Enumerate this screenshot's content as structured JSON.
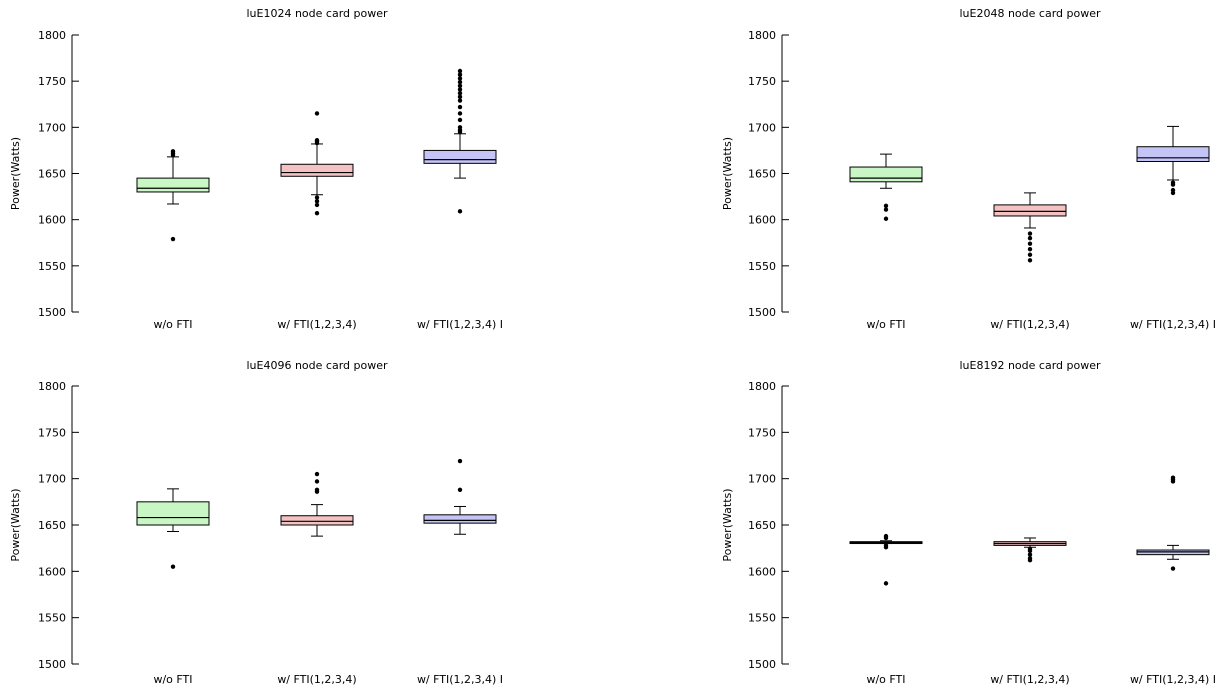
{
  "colors": {
    "series": [
      "#c8f7c5",
      "#f4c2c2",
      "#c4c4f7"
    ],
    "axis": "#000000"
  },
  "chart_data": [
    {
      "type": "boxplot",
      "title": "luE1024 node card power",
      "ylabel": "Power(Watts)",
      "ylim": [
        1500,
        1800
      ],
      "yticks": [
        1500,
        1550,
        1600,
        1650,
        1700,
        1750,
        1800
      ],
      "categories": [
        "w/o FTI",
        "w/ FTI(1,2,3,4)",
        "w/ FTI(1,2,3,4) I"
      ],
      "boxes": [
        {
          "whisker_low": 1617,
          "q1": 1630,
          "median": 1634,
          "q3": 1645,
          "whisker_high": 1668,
          "outliers": [
            1579,
            1670,
            1672,
            1674
          ]
        },
        {
          "whisker_low": 1627,
          "q1": 1647,
          "median": 1651,
          "q3": 1660,
          "whisker_high": 1682,
          "outliers": [
            1607,
            1616,
            1620,
            1624,
            1683,
            1685,
            1686,
            1715
          ]
        },
        {
          "whisker_low": 1645,
          "q1": 1661,
          "median": 1665,
          "q3": 1675,
          "whisker_high": 1693,
          "outliers": [
            1609,
            1695,
            1697,
            1700,
            1708,
            1715,
            1722,
            1729,
            1733,
            1737,
            1741,
            1745,
            1749,
            1753,
            1757,
            1761
          ]
        }
      ]
    },
    {
      "type": "boxplot",
      "title": "luE2048 node card power",
      "ylabel": "Power(Watts)",
      "ylim": [
        1500,
        1800
      ],
      "yticks": [
        1500,
        1550,
        1600,
        1650,
        1700,
        1750,
        1800
      ],
      "categories": [
        "w/o FTI",
        "w/ FTI(1,2,3,4)",
        "w/ FTI(1,2,3,4) I"
      ],
      "boxes": [
        {
          "whisker_low": 1634,
          "q1": 1641,
          "median": 1645,
          "q3": 1657,
          "whisker_high": 1671,
          "outliers": [
            1601,
            1611,
            1615
          ]
        },
        {
          "whisker_low": 1591,
          "q1": 1604,
          "median": 1609,
          "q3": 1616,
          "whisker_high": 1629,
          "outliers": [
            1556,
            1562,
            1568,
            1574,
            1580,
            1585
          ]
        },
        {
          "whisker_low": 1643,
          "q1": 1663,
          "median": 1667,
          "q3": 1679,
          "whisker_high": 1701,
          "outliers": [
            1629,
            1632,
            1638,
            1640
          ]
        }
      ]
    },
    {
      "type": "boxplot",
      "title": "luE4096 node card power",
      "ylabel": "Power(Watts)",
      "ylim": [
        1500,
        1800
      ],
      "yticks": [
        1500,
        1550,
        1600,
        1650,
        1700,
        1750,
        1800
      ],
      "categories": [
        "w/o FTI",
        "w/ FTI(1,2,3,4)",
        "w/ FTI(1,2,3,4) I"
      ],
      "boxes": [
        {
          "whisker_low": 1643,
          "q1": 1650,
          "median": 1658,
          "q3": 1675,
          "whisker_high": 1689,
          "outliers": [
            1605
          ]
        },
        {
          "whisker_low": 1638,
          "q1": 1650,
          "median": 1654,
          "q3": 1660,
          "whisker_high": 1672,
          "outliers": [
            1686,
            1688,
            1697,
            1705
          ]
        },
        {
          "whisker_low": 1640,
          "q1": 1652,
          "median": 1655,
          "q3": 1661,
          "whisker_high": 1670,
          "outliers": [
            1688,
            1719
          ]
        }
      ]
    },
    {
      "type": "boxplot",
      "title": "luE8192 node card power",
      "ylabel": "Power(Watts)",
      "ylim": [
        1500,
        1800
      ],
      "yticks": [
        1500,
        1550,
        1600,
        1650,
        1700,
        1750,
        1800
      ],
      "categories": [
        "w/o FTI",
        "w/ FTI(1,2,3,4)",
        "w/ FTI(1,2,3,4) I"
      ],
      "boxes": [
        {
          "whisker_low": 1630,
          "q1": 1630,
          "median": 1631,
          "q3": 1632,
          "whisker_high": 1633,
          "outliers": [
            1587,
            1626,
            1628,
            1636,
            1638
          ]
        },
        {
          "whisker_low": 1626,
          "q1": 1628,
          "median": 1630,
          "q3": 1632,
          "whisker_high": 1636,
          "outliers": [
            1612,
            1614,
            1618,
            1622,
            1624
          ]
        },
        {
          "whisker_low": 1613,
          "q1": 1618,
          "median": 1621,
          "q3": 1623,
          "whisker_high": 1628,
          "outliers": [
            1603,
            1697,
            1699,
            1701
          ]
        }
      ]
    }
  ]
}
